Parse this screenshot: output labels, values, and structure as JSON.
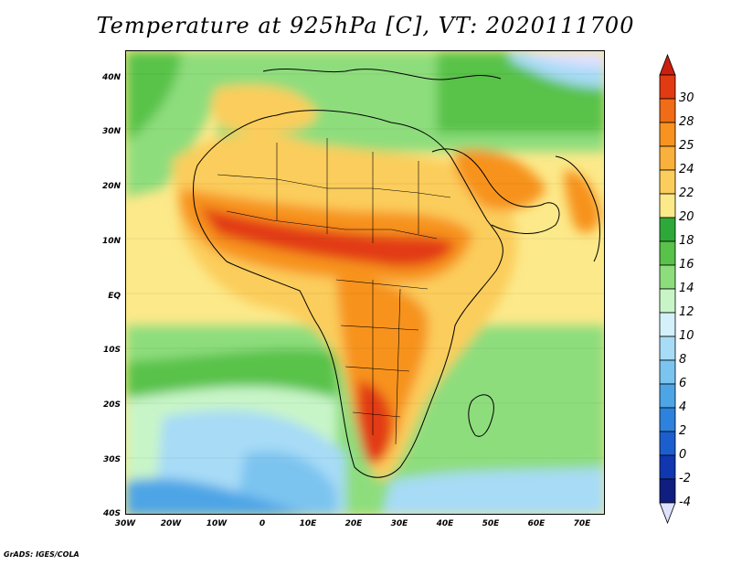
{
  "title": "Temperature at 925hPa [C], VT: 2020111700",
  "credit": "GrADS: IGES/COLA",
  "lat_ticks": [
    "40N",
    "30N",
    "20N",
    "10N",
    "EQ",
    "10S",
    "20S",
    "30S",
    "40S"
  ],
  "lon_ticks": [
    "30W",
    "20W",
    "10W",
    "0",
    "10E",
    "20E",
    "30E",
    "40E",
    "50E",
    "60E",
    "70E"
  ],
  "colorbar": {
    "labels": [
      "30",
      "28",
      "25",
      "24",
      "22",
      "20",
      "18",
      "16",
      "14",
      "12",
      "10",
      "8",
      "6",
      "4",
      "2",
      "0",
      "-2",
      "-4"
    ],
    "colors": [
      "#e23a12",
      "#f06c16",
      "#f7931e",
      "#f9b03c",
      "#fbcd5c",
      "#fce98a",
      "#2fa83a",
      "#58c24a",
      "#8edd7d",
      "#c8f5c8",
      "#d4f0fb",
      "#a7dbf6",
      "#7cc4f0",
      "#4ea5e6",
      "#2c82dd",
      "#1b5fcf",
      "#1037b0",
      "#101e80"
    ],
    "top_color": "#cc1f10",
    "bottom_color": "#e0e0ff"
  }
}
